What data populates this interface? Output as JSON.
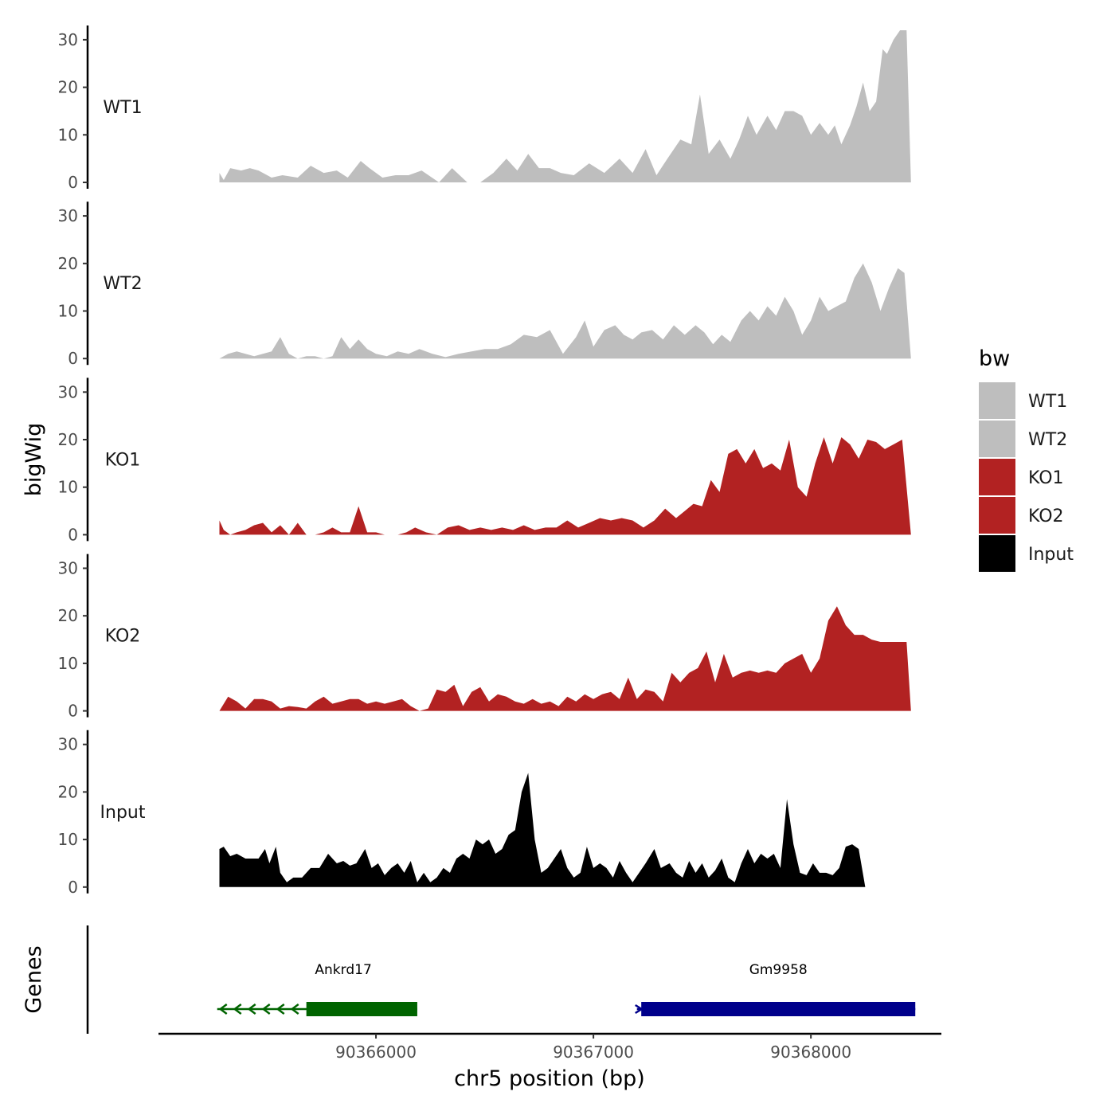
{
  "chart_data": {
    "type": "area",
    "xlabel": "chr5 position (bp)",
    "ylabel": "bigWig",
    "genes_label": "Genes",
    "xlim": [
      90365000,
      90368600
    ],
    "ylim": [
      0,
      33
    ],
    "y_ticks": [
      0,
      10,
      20,
      30
    ],
    "x_ticks": [
      90366000,
      90367000,
      90368000
    ],
    "legend": {
      "title": "bw",
      "position": "right",
      "entries": [
        {
          "name": "WT1",
          "color": "#bebebe"
        },
        {
          "name": "WT2",
          "color": "#bebebe"
        },
        {
          "name": "KO1",
          "color": "#b22222"
        },
        {
          "name": "KO2",
          "color": "#b22222"
        },
        {
          "name": "Input",
          "color": "#000000"
        }
      ]
    },
    "series": [
      {
        "name": "WT1",
        "color": "#bebebe",
        "x": [
          90365280,
          90365300,
          90365330,
          90365380,
          90365420,
          90365460,
          90365520,
          90365570,
          90365640,
          90365700,
          90365760,
          90365820,
          90365870,
          90365930,
          90365970,
          90366030,
          90366090,
          90366150,
          90366210,
          90366290,
          90366350,
          90366420,
          90366480,
          90366540,
          90366600,
          90366650,
          90366700,
          90366750,
          90366800,
          90366850,
          90366910,
          90366980,
          90367050,
          90367120,
          90367180,
          90367240,
          90367290,
          90367340,
          90367400,
          90367450,
          90367490,
          90367530,
          90367580,
          90367630,
          90367670,
          90367710,
          90367750,
          90367800,
          90367840,
          90367880,
          90367920,
          90367960,
          90368000,
          90368040,
          90368080,
          90368110,
          90368140,
          90368180,
          90368210,
          90368240,
          90368270,
          90368300,
          90368330,
          90368350,
          90368380,
          90368410,
          90368440,
          90368460
        ],
        "values": [
          2,
          0.5,
          3,
          2.5,
          3,
          2.5,
          1,
          1.5,
          1,
          3.5,
          2,
          2.5,
          1,
          4.5,
          3,
          1,
          1.5,
          1.5,
          2.5,
          0,
          3,
          0,
          0,
          2,
          5,
          2.5,
          6,
          3,
          3,
          2,
          1.5,
          4,
          2,
          5,
          2,
          7,
          1.5,
          5,
          9,
          8,
          18.5,
          6,
          9,
          5,
          9,
          14,
          10,
          14,
          11,
          15,
          15,
          14,
          10,
          12.5,
          10,
          12,
          8,
          12,
          16,
          21,
          15,
          17,
          28,
          27,
          30,
          32,
          32,
          0
        ]
      },
      {
        "name": "WT2",
        "color": "#bebebe",
        "x": [
          90365280,
          90365320,
          90365360,
          90365400,
          90365440,
          90365480,
          90365520,
          90365560,
          90365600,
          90365640,
          90365680,
          90365720,
          90365760,
          90365800,
          90365840,
          90365880,
          90365920,
          90365960,
          90366000,
          90366050,
          90366100,
          90366150,
          90366200,
          90366260,
          90366320,
          90366380,
          90366440,
          90366500,
          90366560,
          90366620,
          90366680,
          90366740,
          90366800,
          90366860,
          90366920,
          90366960,
          90367000,
          90367050,
          90367100,
          90367140,
          90367180,
          90367220,
          90367270,
          90367320,
          90367370,
          90367420,
          90367470,
          90367510,
          90367550,
          90367590,
          90367630,
          90367680,
          90367720,
          90367760,
          90367800,
          90367840,
          90367880,
          90367920,
          90367960,
          90368000,
          90368040,
          90368080,
          90368120,
          90368160,
          90368200,
          90368240,
          90368280,
          90368320,
          90368360,
          90368400,
          90368430,
          90368460
        ],
        "values": [
          0,
          1,
          1.5,
          1,
          0.5,
          1,
          1.5,
          4.5,
          1,
          0,
          0.5,
          0.5,
          0,
          0.5,
          4.5,
          2,
          4,
          2,
          1,
          0.5,
          1.5,
          1,
          2,
          1,
          0.3,
          1,
          1.5,
          2,
          2,
          3,
          5,
          4.5,
          6,
          1,
          4.5,
          8,
          2.5,
          6,
          7,
          5,
          4,
          5.5,
          6,
          4,
          7,
          5,
          7,
          5.5,
          3,
          5,
          3.5,
          8,
          10,
          8,
          11,
          9,
          13,
          10,
          5,
          8,
          13,
          10,
          11,
          12,
          17,
          20,
          16,
          10,
          15,
          19,
          18,
          0
        ]
      },
      {
        "name": "KO1",
        "color": "#b22222",
        "x": [
          90365280,
          90365300,
          90365330,
          90365360,
          90365400,
          90365440,
          90365480,
          90365520,
          90365560,
          90365600,
          90365640,
          90365680,
          90365720,
          90365760,
          90365800,
          90365840,
          90365880,
          90365920,
          90365960,
          90366000,
          90366040,
          90366070,
          90366100,
          90366140,
          90366180,
          90366230,
          90366280,
          90366330,
          90366380,
          90366430,
          90366480,
          90366530,
          90366580,
          90366630,
          90366680,
          90366730,
          90366780,
          90366830,
          90366880,
          90366930,
          90366980,
          90367030,
          90367080,
          90367130,
          90367180,
          90367230,
          90367280,
          90367330,
          90367380,
          90367420,
          90367460,
          90367500,
          90367540,
          90367580,
          90367620,
          90367660,
          90367700,
          90367740,
          90367780,
          90367820,
          90367860,
          90367900,
          90367940,
          90367980,
          90368020,
          90368060,
          90368100,
          90368140,
          90368180,
          90368220,
          90368260,
          90368300,
          90368340,
          90368380,
          90368420,
          90368460
        ],
        "values": [
          3,
          1,
          0,
          0.5,
          1,
          2,
          2.5,
          0.5,
          2,
          0,
          2.5,
          0,
          0,
          0.5,
          1.5,
          0.5,
          0.5,
          6,
          0.5,
          0.5,
          0,
          0,
          0,
          0.5,
          1.5,
          0.5,
          0,
          1.5,
          2,
          1,
          1.5,
          1,
          1.5,
          1,
          2,
          1,
          1.5,
          1.5,
          3,
          1.5,
          2.5,
          3.5,
          3,
          3.5,
          3,
          1.5,
          3,
          5.5,
          3.5,
          5,
          6.5,
          6,
          11.5,
          9,
          17,
          18,
          15,
          18,
          14,
          15,
          13.5,
          20,
          10,
          8,
          15,
          20.5,
          15,
          20.5,
          19,
          16,
          20,
          19.5,
          18,
          19,
          20,
          0
        ]
      },
      {
        "name": "KO2",
        "color": "#b22222",
        "x": [
          90365280,
          90365320,
          90365360,
          90365400,
          90365440,
          90365480,
          90365520,
          90365560,
          90365600,
          90365640,
          90365680,
          90365720,
          90365760,
          90365800,
          90365840,
          90365880,
          90365920,
          90365960,
          90366000,
          90366040,
          90366080,
          90366120,
          90366160,
          90366200,
          90366240,
          90366280,
          90366320,
          90366360,
          90366400,
          90366440,
          90366480,
          90366520,
          90366560,
          90366600,
          90366640,
          90366680,
          90366720,
          90366760,
          90366800,
          90366840,
          90366880,
          90366920,
          90366960,
          90367000,
          90367040,
          90367080,
          90367120,
          90367160,
          90367200,
          90367240,
          90367280,
          90367320,
          90367360,
          90367400,
          90367440,
          90367480,
          90367520,
          90367560,
          90367600,
          90367640,
          90367680,
          90367720,
          90367760,
          90367800,
          90367840,
          90367880,
          90367920,
          90367960,
          90368000,
          90368040,
          90368080,
          90368120,
          90368160,
          90368200,
          90368240,
          90368280,
          90368320,
          90368360,
          90368400,
          90368440,
          90368460
        ],
        "values": [
          0,
          3,
          2,
          0.5,
          2.5,
          2.5,
          2,
          0.5,
          1,
          0.8,
          0.5,
          2,
          3,
          1.5,
          2,
          2.5,
          2.5,
          1.5,
          2,
          1.5,
          2,
          2.5,
          1,
          0,
          0.5,
          4.5,
          4,
          5.5,
          1,
          4,
          5,
          2,
          3.5,
          3,
          2,
          1.5,
          2.5,
          1.5,
          2,
          1,
          3,
          2,
          3.5,
          2.5,
          3.5,
          4,
          2.5,
          7,
          2.5,
          4.5,
          4,
          2,
          8,
          6,
          8,
          9,
          12.5,
          6,
          12,
          7,
          8,
          8.5,
          8,
          8.5,
          8,
          10,
          11,
          12,
          8,
          11,
          19,
          22,
          18,
          16,
          16,
          15,
          14.5,
          14.5,
          14.5,
          14.5,
          0
        ]
      },
      {
        "name": "Input",
        "color": "#000000",
        "x": [
          90365280,
          90365300,
          90365330,
          90365360,
          90365400,
          90365430,
          90365460,
          90365490,
          90365510,
          90365540,
          90365560,
          90365590,
          90365620,
          90365660,
          90365700,
          90365740,
          90365780,
          90365820,
          90365850,
          90365880,
          90365910,
          90365950,
          90365980,
          90366010,
          90366040,
          90366070,
          90366100,
          90366130,
          90366160,
          90366190,
          90366220,
          90366250,
          90366280,
          90366310,
          90366340,
          90366370,
          90366400,
          90366430,
          90366460,
          90366490,
          90366520,
          90366550,
          90366580,
          90366610,
          90366640,
          90366670,
          90366700,
          90366730,
          90366760,
          90366790,
          90366820,
          90366850,
          90366880,
          90366910,
          90366940,
          90366970,
          90367000,
          90367030,
          90367060,
          90367090,
          90367120,
          90367150,
          90367180,
          90367210,
          90367240,
          90367280,
          90367310,
          90367350,
          90367380,
          90367410,
          90367440,
          90367470,
          90367500,
          90367530,
          90367560,
          90367590,
          90367620,
          90367650,
          90367680,
          90367710,
          90367740,
          90367770,
          90367800,
          90367830,
          90367860,
          90367890,
          90367920,
          90367950,
          90367980,
          90368010,
          90368040,
          90368070,
          90368100,
          90368130,
          90368160,
          90368190,
          90368220,
          90368250,
          90368280,
          90368310,
          90368340,
          90368370,
          90368400,
          90368430,
          90368460
        ],
        "values": [
          8,
          8.5,
          6.5,
          7,
          6,
          6,
          6,
          8,
          5,
          8.5,
          3,
          1,
          2,
          2,
          4,
          4,
          7,
          5,
          5.5,
          4.5,
          5,
          8,
          4,
          5,
          2.5,
          4,
          5,
          3,
          5.5,
          1,
          3,
          1,
          2,
          4,
          3,
          6,
          7,
          6,
          10,
          9,
          10,
          7,
          8,
          11,
          12,
          20,
          24,
          10,
          3,
          4,
          6,
          8,
          4,
          2,
          3,
          8.5,
          4,
          5,
          4,
          2,
          5.5,
          3,
          1,
          3,
          5,
          8,
          4,
          5,
          3,
          2,
          5.5,
          3,
          5,
          2,
          3.5,
          6,
          2,
          1,
          5,
          8,
          5,
          7,
          6,
          7,
          4,
          18.5,
          9,
          3,
          2.5,
          5,
          3,
          3,
          2.5,
          4,
          8.5,
          9,
          8,
          0,
          0,
          0,
          0,
          0,
          0,
          0,
          0
        ]
      }
    ],
    "genes": [
      {
        "name": "Ankrd17",
        "start": 90365270,
        "end": 90366190,
        "thick_start": 90365680,
        "thick_end": 90366190,
        "strand": "-",
        "color": "#006400"
      },
      {
        "name": "Gm9958",
        "start": 90367200,
        "end": 90368480,
        "thick_start": 90367220,
        "thick_end": 90368480,
        "strand": "+",
        "color": "#00008b"
      }
    ]
  }
}
